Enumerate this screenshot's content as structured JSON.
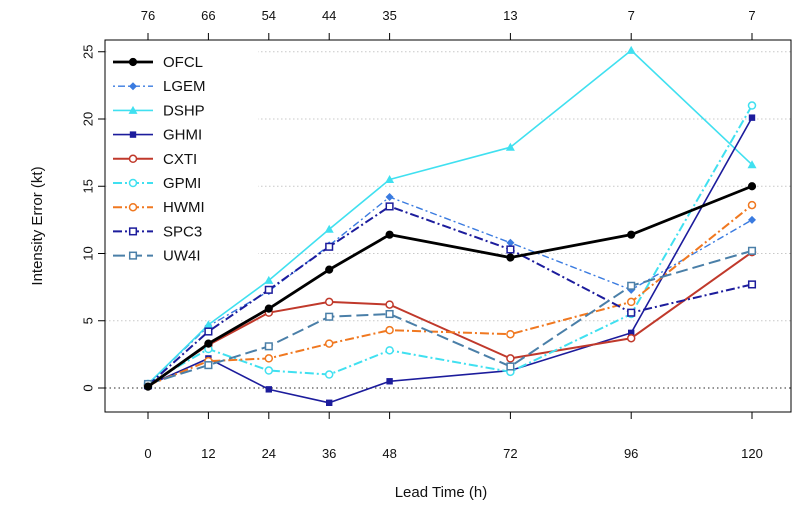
{
  "chart_data": {
    "type": "line",
    "xlabel": "Lead Time (h)",
    "ylabel": "Intensity Error (kt)",
    "x": [
      0,
      12,
      24,
      36,
      48,
      72,
      96,
      120
    ],
    "top_counts": [
      76,
      66,
      54,
      44,
      35,
      13,
      7,
      7
    ],
    "ylim": [
      -2,
      26
    ],
    "yticks": [
      0,
      5,
      10,
      15,
      20,
      25
    ],
    "grid": "horizontal dotted",
    "zero_line": "dotted",
    "legend_position": "top-left",
    "series": [
      {
        "name": "OFCL",
        "color": "#000000",
        "marker": "filled-circle",
        "dash": "solid",
        "width": 2.8,
        "values": [
          0.1,
          3.3,
          5.9,
          8.8,
          11.4,
          9.7,
          11.4,
          15.0
        ]
      },
      {
        "name": "LGEM",
        "color": "#3a7be0",
        "marker": "filled-diamond",
        "dash": "dotdash",
        "width": 1.4,
        "values": [
          0.3,
          4.6,
          7.2,
          10.6,
          14.2,
          10.8,
          7.3,
          12.5
        ]
      },
      {
        "name": "DSHP",
        "color": "#40e0f0",
        "marker": "filled-triangle",
        "dash": "solid",
        "width": 1.6,
        "values": [
          0.3,
          4.7,
          8.0,
          11.8,
          15.5,
          17.9,
          25.1,
          16.6
        ]
      },
      {
        "name": "GHMI",
        "color": "#1c1c9c",
        "marker": "filled-square",
        "dash": "solid",
        "width": 1.6,
        "values": [
          0.2,
          2.2,
          -0.1,
          -1.1,
          0.5,
          1.3,
          4.1,
          20.1
        ]
      },
      {
        "name": "CXTI",
        "color": "#c0392b",
        "marker": "open-circle",
        "dash": "solid",
        "width": 2.0,
        "values": [
          0.2,
          3.2,
          5.6,
          6.4,
          6.2,
          2.2,
          3.7,
          10.1
        ]
      },
      {
        "name": "GPMI",
        "color": "#40e0f0",
        "marker": "open-circle",
        "dash": "dashdot",
        "width": 2.0,
        "values": [
          0.3,
          2.9,
          1.3,
          1.0,
          2.8,
          1.2,
          5.5,
          21.0
        ]
      },
      {
        "name": "HWMI",
        "color": "#f07820",
        "marker": "open-circle",
        "dash": "dashdot",
        "width": 2.0,
        "values": [
          0.2,
          2.0,
          2.2,
          3.3,
          4.3,
          4.0,
          6.4,
          13.6
        ]
      },
      {
        "name": "SPC3",
        "color": "#1c1c9c",
        "marker": "open-square",
        "dash": "dashdot",
        "width": 2.0,
        "values": [
          0.2,
          4.2,
          7.3,
          10.5,
          13.5,
          10.3,
          5.6,
          7.7
        ]
      },
      {
        "name": "UW4I",
        "color": "#4a7fa8",
        "marker": "open-square",
        "dash": "longdash",
        "width": 2.0,
        "values": [
          0.3,
          1.7,
          3.1,
          5.3,
          5.5,
          1.6,
          7.6,
          10.2
        ]
      }
    ]
  }
}
